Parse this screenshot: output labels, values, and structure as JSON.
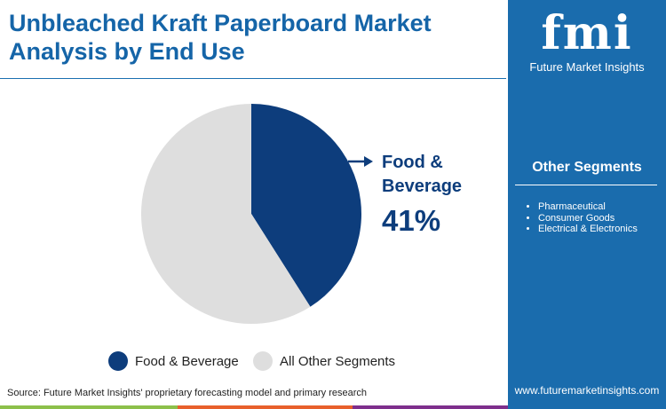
{
  "title": "Unbleached Kraft Paperboard Market Analysis by End Use",
  "logo": {
    "mark": "fmi",
    "name": "Future Market Insights"
  },
  "chart_data": {
    "type": "pie",
    "slices": [
      {
        "name": "Food & Beverage",
        "value": 41,
        "color": "#0d3d7c"
      },
      {
        "name": "All Other Segments",
        "value": 59,
        "color": "#dedede"
      }
    ],
    "callout": {
      "label": "Food & Beverage",
      "value": "41%"
    },
    "legend": [
      "Food & Beverage",
      "All Other Segments"
    ],
    "legend_position": "bottom"
  },
  "other_segments": {
    "heading": "Other Segments",
    "items": [
      "Pharmaceutical",
      "Consumer Goods",
      "Electrical & Electronics"
    ]
  },
  "source": "Source: Future Market Insights' proprietary forecasting model and primary research",
  "url": "www.futuremarketinsights.com",
  "colors": {
    "panel": "#1a6cad",
    "title": "#1565a8",
    "bars": [
      "#8cc04a",
      "#e8602c",
      "#7e2f8c"
    ]
  }
}
